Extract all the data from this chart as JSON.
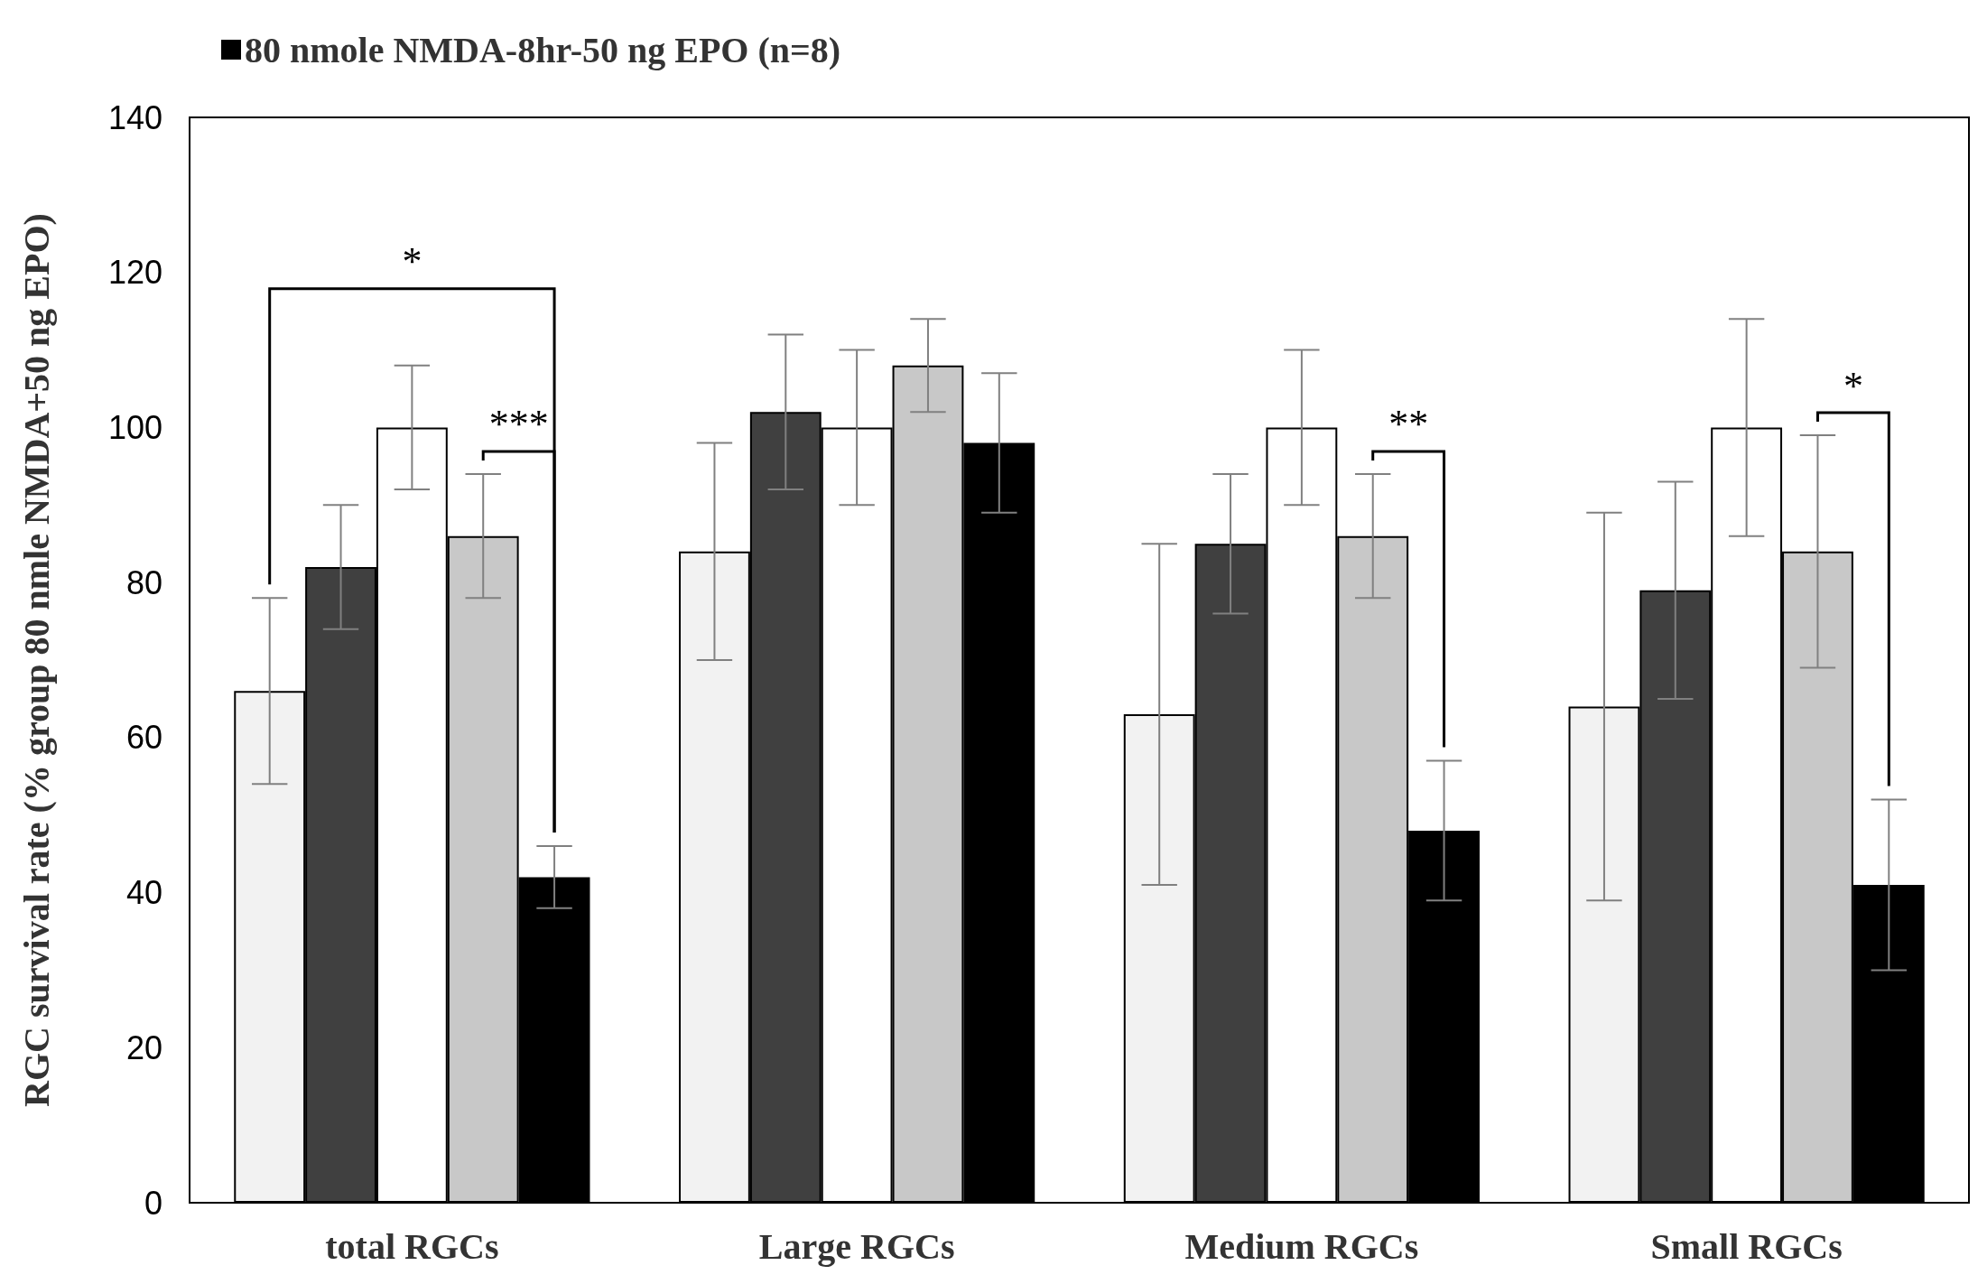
{
  "chart_data": {
    "type": "bar",
    "ylabel": "RGC survival rate (% group 80 nmle NMDA+50 ng EPO)",
    "categories": [
      "total RGCs",
      "Large RGCs",
      "Medium RGCs",
      "Small RGCs"
    ],
    "series": [
      {
        "color": "#f2f2f2",
        "values": [
          66,
          84,
          63,
          64
        ],
        "errors": [
          12,
          14,
          22,
          25
        ]
      },
      {
        "color": "#404040",
        "values": [
          82,
          102,
          85,
          79
        ],
        "errors": [
          8,
          10,
          9,
          14
        ]
      },
      {
        "color": "#ffffff",
        "values": [
          100,
          100,
          100,
          100
        ],
        "errors": [
          8,
          10,
          10,
          14
        ]
      },
      {
        "color": "#c8c8c8",
        "values": [
          86,
          108,
          86,
          84
        ],
        "errors": [
          8,
          6,
          8,
          15
        ]
      },
      {
        "name": "80 nmole NMDA-8hr-50 ng EPO (n=8)",
        "color": "#000000",
        "values": [
          42,
          98,
          48,
          41
        ],
        "errors": [
          4,
          9,
          9,
          11
        ]
      }
    ],
    "ylim": [
      0,
      140
    ],
    "yticks": [
      0,
      20,
      40,
      60,
      80,
      100,
      120,
      140
    ],
    "grid": false,
    "legend": "top left",
    "annotations": [
      "*",
      "***",
      "**",
      "*"
    ]
  }
}
